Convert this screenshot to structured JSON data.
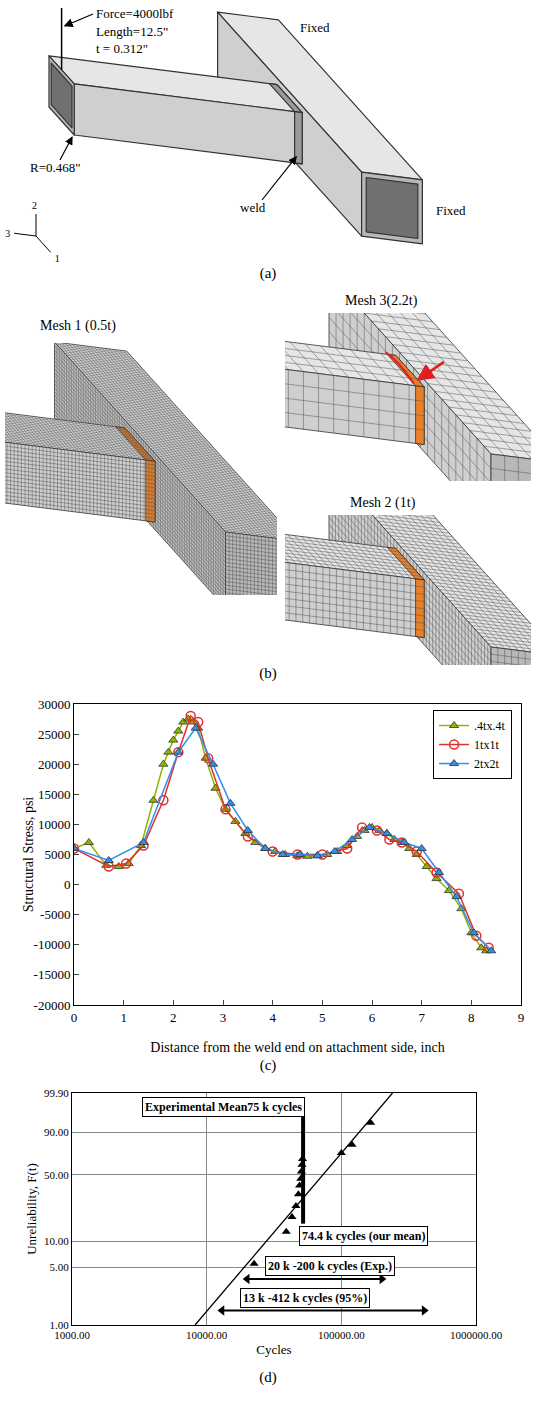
{
  "panels": {
    "a": {
      "label": "(a)",
      "texts": {
        "length": "Length=12.5\"",
        "thickness": "t = 0.312\"",
        "force": "Force=4000lbf",
        "radius": "R=0.468\"",
        "weld": "weld",
        "fixed": [
          "Fixed",
          "Fixed"
        ],
        "axes": [
          "2",
          "3",
          "1"
        ]
      }
    },
    "b": {
      "label": "(b)",
      "meshes": [
        {
          "label": "Mesh 1 (0.5t)",
          "element_size": 0.5
        },
        {
          "label": "Mesh 3(2.2t)",
          "element_size": 2.2
        },
        {
          "label": "Mesh 2 (1t)",
          "element_size": 1
        }
      ]
    }
  },
  "chart_data": [
    {
      "label": "(c)",
      "type": "line",
      "x_label": "Distance from the weld end on attachment side, inch",
      "y_label": "Structural Stress, psi",
      "xlim": [
        0,
        9
      ],
      "xticks": [
        0,
        1,
        2,
        3,
        4,
        5,
        6,
        7,
        8,
        9
      ],
      "ylim": [
        -20000,
        30000
      ],
      "yticks": [
        -20000,
        -15000,
        -10000,
        -5000,
        0,
        5000,
        10000,
        15000,
        20000,
        25000,
        30000
      ],
      "grid": false,
      "legend": "top right",
      "series": [
        {
          "name": ".4tx.4t",
          "color": "#8db600",
          "marker": "triangle",
          "x": [
            0,
            0.3,
            0.65,
            0.9,
            1.1,
            1.35,
            1.6,
            1.8,
            1.9,
            2.0,
            2.1,
            2.2,
            2.3,
            2.4,
            2.5,
            2.65,
            2.85,
            3.05,
            3.25,
            3.45,
            3.65,
            3.85,
            4.05,
            4.25,
            4.5,
            4.7,
            4.9,
            5.1,
            5.3,
            5.5,
            5.7,
            5.85,
            6.0,
            6.15,
            6.3,
            6.45,
            6.6,
            6.75,
            6.9,
            7.1,
            7.3,
            7.55,
            7.8,
            8.0,
            8.2,
            8.3
          ],
          "values": [
            6000,
            7000,
            3200,
            3000,
            3500,
            6500,
            14000,
            20000,
            22000,
            24000,
            25500,
            27000,
            27500,
            27000,
            26000,
            21000,
            16000,
            12500,
            10500,
            8500,
            7000,
            6000,
            5500,
            5000,
            4800,
            4700,
            4800,
            5000,
            5500,
            6500,
            8000,
            9000,
            9500,
            9000,
            8500,
            7500,
            7000,
            6000,
            5000,
            3000,
            1000,
            -1000,
            -4000,
            -8000,
            -10500,
            -11000
          ]
        },
        {
          "name": "1tx1t",
          "color": "#e03030",
          "marker": "circle-open",
          "x": [
            0,
            0.7,
            1.05,
            1.4,
            1.8,
            2.1,
            2.35,
            2.5,
            2.7,
            3.05,
            3.5,
            4.0,
            4.5,
            5.0,
            5.5,
            5.8,
            6.1,
            6.35,
            6.6,
            6.9,
            7.3,
            7.75,
            8.1,
            8.35
          ],
          "values": [
            6000,
            3000,
            3500,
            6500,
            14000,
            22000,
            28000,
            27000,
            21000,
            12500,
            8000,
            5500,
            5000,
            5000,
            6000,
            9500,
            9000,
            7500,
            7000,
            5500,
            2000,
            -1500,
            -8500,
            -10500
          ]
        },
        {
          "name": "2tx2t",
          "color": "#2f8fef",
          "marker": "triangle",
          "x": [
            0,
            0.7,
            1.4,
            2.1,
            2.45,
            2.8,
            3.15,
            3.5,
            3.85,
            4.2,
            4.55,
            4.9,
            5.25,
            5.6,
            5.95,
            6.3,
            6.65,
            7.0,
            7.35,
            7.7,
            8.05,
            8.4
          ],
          "values": [
            6000,
            4000,
            7000,
            22000,
            26000,
            20000,
            13500,
            9000,
            6000,
            5000,
            5000,
            4800,
            5500,
            7500,
            9500,
            8500,
            7000,
            6000,
            2000,
            -2000,
            -8000,
            -11000
          ]
        }
      ]
    },
    {
      "label": "(d)",
      "type": "probability",
      "log": "x",
      "x_label": "Cycles",
      "y_label": "Unreliability, F(t)",
      "xlim": [
        1000,
        1000000
      ],
      "xticks": [
        {
          "value": 1000,
          "label": "1000.00"
        },
        {
          "value": 10000,
          "label": "10000.00"
        },
        {
          "value": 100000,
          "label": "100000.00"
        },
        {
          "value": 1000000,
          "label": "1000000.00"
        }
      ],
      "ylim": [
        1,
        99.9
      ],
      "yticks": [
        {
          "value": 1,
          "label": "1.00"
        },
        {
          "value": 5,
          "label": "5.00"
        },
        {
          "value": 10,
          "label": "10.00"
        },
        {
          "value": 50,
          "label": "50.00"
        },
        {
          "value": 90,
          "label": "90.00"
        },
        {
          "value": 99.9,
          "label": "99.90"
        }
      ],
      "grid": true,
      "series": [
        {
          "type": "scatter",
          "marker": "triangle",
          "color": "#000000",
          "x": [
            22500,
            39000,
            43000,
            46000,
            48000,
            49000,
            50000,
            50500,
            51000,
            51500,
            100000,
            120000,
            165000
          ],
          "values": [
            5.5,
            13,
            19,
            25,
            33,
            40,
            46,
            53,
            60,
            66,
            72,
            80,
            95
          ]
        },
        {
          "type": "line",
          "color": "#000000",
          "x": [
            8200,
            240000
          ],
          "values": [
            1,
            99.9
          ]
        }
      ],
      "mean_bar": {
        "x": 52000,
        "values": [
          16,
          97
        ]
      },
      "annotations": [
        "Experimental Mean75 k cycles",
        "74.4 k cycles (our mean)"
      ],
      "ranges": [
        {
          "text": "20 k -200 k cycles (Exp.)",
          "from": 20000,
          "to": 200000,
          "y": 3.6
        },
        {
          "text": "13 k -412 k cycles (95%)",
          "from": 13000,
          "to": 412000,
          "y": 1.5
        }
      ]
    }
  ]
}
